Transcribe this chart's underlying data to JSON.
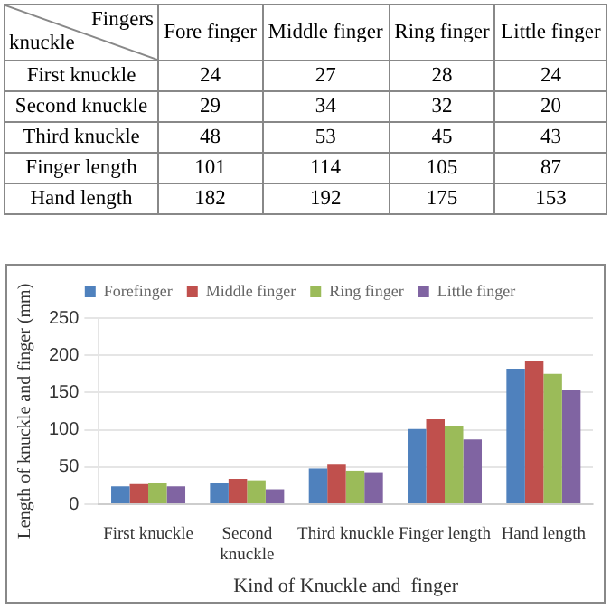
{
  "chart_data": [
    {
      "type": "heatmap",
      "xlabel": "Fingers",
      "ylabel": "knuckle",
      "categories": [
        "Fore finger",
        "Middle finger",
        "Ring finger",
        "Little finger"
      ],
      "y_categories": [
        "First knuckle",
        "Second knuckle",
        "Third knuckle",
        "Finger length",
        "Hand length"
      ],
      "cells": [
        [
          24,
          27,
          28,
          24
        ],
        [
          29,
          34,
          32,
          20
        ],
        [
          48,
          53,
          45,
          43
        ],
        [
          101,
          114,
          105,
          87
        ],
        [
          182,
          192,
          175,
          153
        ]
      ],
      "data_labels": true
    },
    {
      "type": "bar",
      "xlabel": "Kind of Knuckle and  finger",
      "ylabel": "Length of knuckle and finger (mm)",
      "categories": [
        "First knuckle",
        "Second knuckle",
        "Third knuckle",
        "Finger length",
        "Hand length"
      ],
      "series": [
        {
          "name": "Forefinger",
          "color": "#4f81bd",
          "values": [
            24,
            29,
            48,
            101,
            182
          ]
        },
        {
          "name": "Middle finger",
          "color": "#c0504d",
          "values": [
            27,
            34,
            53,
            114,
            192
          ]
        },
        {
          "name": "Ring finger",
          "color": "#9bbb59",
          "values": [
            28,
            32,
            45,
            105,
            175
          ]
        },
        {
          "name": "Little finger",
          "color": "#8064a2",
          "values": [
            24,
            20,
            43,
            87,
            153
          ]
        }
      ],
      "ylim": [
        0,
        250
      ],
      "yticks": [
        0,
        50,
        100,
        150,
        200,
        250
      ],
      "grid": "y",
      "legend": "top"
    }
  ]
}
